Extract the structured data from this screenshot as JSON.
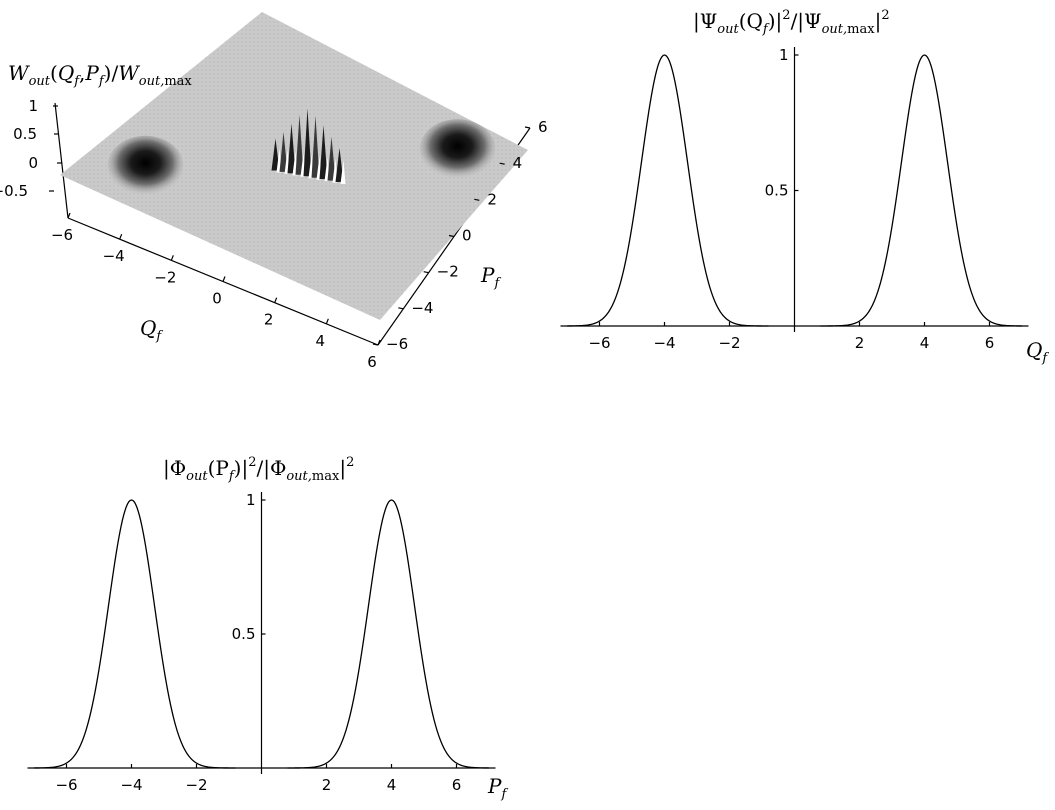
{
  "chart_data": [
    {
      "type": "surface",
      "zlabel": "W_out(Q_f,P_f)/W_out,max",
      "xlabel": "Q_f",
      "ylabel": "P_f",
      "x_ticks": [
        "-6",
        "-4",
        "-2",
        "0",
        "2",
        "4",
        "6"
      ],
      "y_ticks": [
        "-6",
        "-4",
        "-2",
        "0",
        "2",
        "4",
        "6"
      ],
      "z_ticks": [
        "1",
        "0.5",
        "0",
        "-0.5"
      ],
      "xlim": [
        -6,
        6
      ],
      "ylim": [
        -6,
        6
      ],
      "zlim": [
        -0.5,
        1
      ],
      "features": [
        {
          "kind": "gaussian-peak",
          "Q": -4,
          "P": -4,
          "height": 1
        },
        {
          "kind": "gaussian-peak",
          "Q": 4,
          "P": 4,
          "height": 1
        },
        {
          "kind": "interference-fringes",
          "Q": 0,
          "P": 0,
          "height_range": [
            -1,
            1
          ]
        }
      ]
    },
    {
      "type": "line",
      "ylabel": "|Ψ_out(Q_f)|²/|Ψ_out,max|²",
      "xlabel": "Q_f",
      "xlim": [
        -7,
        7
      ],
      "ylim": [
        0,
        1
      ],
      "x_ticks": [
        "-6",
        "-4",
        "-2",
        "2",
        "4",
        "6"
      ],
      "y_ticks": [
        "0.5",
        "1"
      ],
      "series": [
        {
          "shape": "gaussian",
          "center": -4,
          "peak": 1,
          "sigma": 0.707
        },
        {
          "shape": "gaussian",
          "center": 4,
          "peak": 1,
          "sigma": 0.707
        }
      ]
    },
    {
      "type": "line",
      "ylabel": "|Φ_out(P_f)|²/|Φ_out,max|²",
      "xlabel": "P_f",
      "xlim": [
        -7,
        7
      ],
      "ylim": [
        0,
        1
      ],
      "x_ticks": [
        "-6",
        "-4",
        "-2",
        "2",
        "4",
        "6"
      ],
      "y_ticks": [
        "0.5",
        "1"
      ],
      "series": [
        {
          "shape": "gaussian",
          "center": -4,
          "peak": 1,
          "sigma": 0.707
        },
        {
          "shape": "gaussian",
          "center": 4,
          "peak": 1,
          "sigma": 0.707
        }
      ]
    }
  ],
  "text": {
    "w_main": "W",
    "w_sub": "out",
    "w_args": "(Q",
    "w_f": "f",
    "w_comma": ",P",
    "w_f2": "f",
    "w_slash": ")/W",
    "w_sub2": "out,",
    "w_max": "max",
    "q_main": "Q",
    "q_sub": "f",
    "p_main": "P",
    "p_sub": "f",
    "psi_open": "|Ψ",
    "psi_sub": "out",
    "psi_args": "(Q",
    "psi_f": "f",
    "psi_close": ")|",
    "psi_sq": "2",
    "psi_div": "/|Ψ",
    "psi_sub2": "out,",
    "psi_max": "max",
    "psi_end": "|",
    "psi_sq2": "2",
    "phi_open": "|Φ",
    "phi_sub": "out",
    "phi_args": "(P",
    "phi_f": "f",
    "phi_close": ")|",
    "phi_sq": "2",
    "phi_div": "/|Φ",
    "phi_sub2": "out,",
    "phi_max": "max",
    "phi_end": "|",
    "phi_sq2": "2",
    "qax_main": "Q",
    "qax_sub": "f",
    "pax_main": "P",
    "pax_sub": "f"
  },
  "colors": {
    "surface": "#c6c6c6",
    "surface_edge": "#a8a8a8",
    "peak": "#0d0d0d",
    "ink": "#000000"
  }
}
